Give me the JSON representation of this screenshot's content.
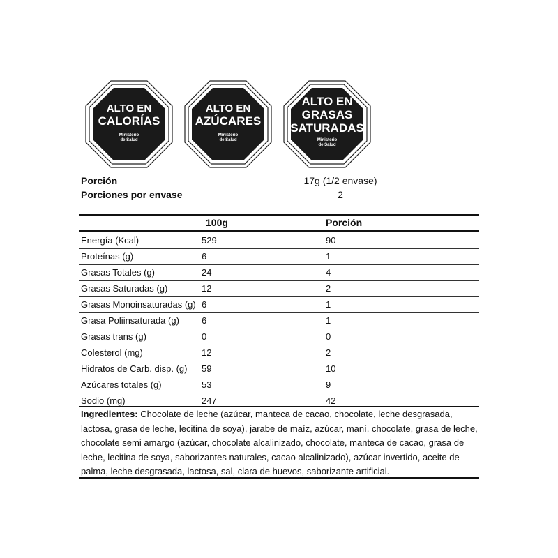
{
  "seals": [
    {
      "line1": "ALTO EN",
      "line2": "CALORÍAS",
      "line3": "",
      "authority1": "Ministerio",
      "authority2": "de Salud"
    },
    {
      "line1": "ALTO EN",
      "line2": "AZÚCARES",
      "line3": "",
      "authority1": "Ministerio",
      "authority2": "de Salud"
    },
    {
      "line1": "ALTO EN",
      "line2": "GRASAS",
      "line3": "SATURADAS",
      "authority1": "Ministerio",
      "authority2": "de Salud"
    }
  ],
  "portion": {
    "label": "Porción",
    "value": "17g (1/2 envase)",
    "per_package_label": "Porciones por envase",
    "per_package_value": "2"
  },
  "table": {
    "headers": [
      "",
      "100g",
      "Porción"
    ],
    "rows": [
      [
        "Energía (Kcal)",
        "529",
        "90"
      ],
      [
        "Proteínas (g)",
        "6",
        "1"
      ],
      [
        "Grasas Totales (g)",
        "24",
        "4"
      ],
      [
        "Grasas Saturadas (g)",
        "12",
        "2"
      ],
      [
        "Grasas Monoinsaturadas (g)",
        "6",
        "1"
      ],
      [
        "Grasa Poliinsaturada (g)",
        "6",
        "1"
      ],
      [
        "Grasas trans (g)",
        "0",
        "0"
      ],
      [
        "Colesterol (mg)",
        "12",
        "2"
      ],
      [
        "Hidratos de Carb. disp. (g)",
        "59",
        "10"
      ],
      [
        "Azúcares totales (g)",
        "53",
        "9"
      ],
      [
        "Sodio (mg)",
        "247",
        "42"
      ]
    ]
  },
  "ingredients": {
    "label": "Ingredientes:",
    "text": "Chocolate de leche (azúcar, manteca de cacao, chocolate, leche desgrasada, lactosa, grasa de leche, lecitina de soya), jarabe de maíz, azúcar, maní, chocolate, grasa de leche, chocolate semi amargo (azúcar, chocolate alcalinizado, chocolate, manteca de cacao, grasa de leche, lecitina de soya, saborizantes naturales, cacao alcalinizado), azúcar invertido, aceite de palma, leche desgrasada, lactosa, sal, clara de huevos, saborizante artificial."
  },
  "colors": {
    "seal_fill": "#1a1a1a",
    "text": "#111111"
  }
}
